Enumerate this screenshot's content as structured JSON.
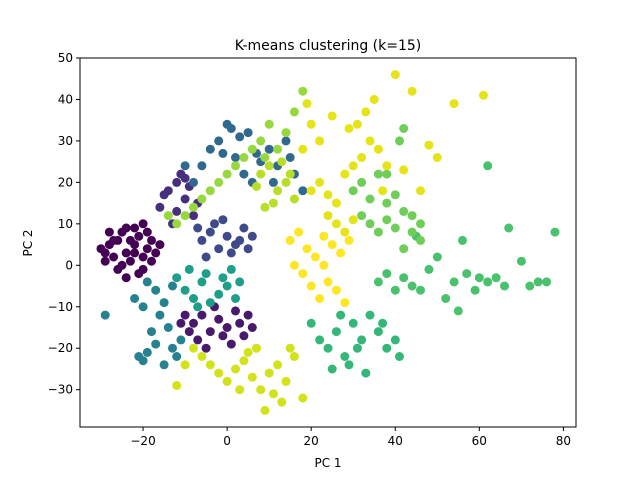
{
  "chart_data": {
    "type": "scatter",
    "title": "K-means clustering (k=15)",
    "xlabel": "PC 1",
    "ylabel": "PC 2",
    "xlim": [
      -35,
      83
    ],
    "ylim": [
      -39,
      50
    ],
    "xticks": [
      -20,
      0,
      20,
      40,
      60,
      80
    ],
    "yticks": [
      -30,
      -20,
      -10,
      0,
      10,
      20,
      30,
      40,
      50
    ],
    "xtick_labels": [
      "−20",
      "0",
      "20",
      "40",
      "60",
      "80"
    ],
    "ytick_labels": [
      "−30",
      "−20",
      "−10",
      "0",
      "10",
      "20",
      "30",
      "40",
      "50"
    ],
    "grid": false,
    "legend": "none",
    "colormap": "viridis",
    "series": [
      {
        "cluster": 0,
        "color": "#440154",
        "points": [
          [
            -30,
            4
          ],
          [
            -29,
            3
          ],
          [
            -28,
            5
          ],
          [
            -27,
            2
          ],
          [
            -26,
            6
          ],
          [
            -25,
            8
          ],
          [
            -24,
            3
          ],
          [
            -23,
            1
          ],
          [
            -22,
            5
          ],
          [
            -21,
            7
          ],
          [
            -20,
            2
          ],
          [
            -19,
            4
          ],
          [
            -18,
            6
          ],
          [
            -17,
            3
          ],
          [
            -28,
            8
          ],
          [
            -26,
            -1
          ],
          [
            -24,
            -3
          ],
          [
            -22,
            9
          ],
          [
            -20,
            10
          ],
          [
            -18,
            1
          ],
          [
            -16,
            5
          ],
          [
            -25,
            0
          ],
          [
            -23,
            6
          ],
          [
            -21,
            -2
          ],
          [
            -19,
            8
          ],
          [
            -27,
            6
          ],
          [
            -24,
            9
          ],
          [
            -29,
            1
          ],
          [
            -22,
            3
          ],
          [
            -20,
            -1
          ]
        ]
      },
      {
        "cluster": 1,
        "color": "#481a6c",
        "points": [
          [
            -8,
            -14
          ],
          [
            -6,
            -12
          ],
          [
            -4,
            -16
          ],
          [
            -2,
            -13
          ],
          [
            0,
            -15
          ],
          [
            2,
            -11
          ],
          [
            4,
            -17
          ],
          [
            -10,
            -12
          ],
          [
            -7,
            -18
          ],
          [
            -3,
            -10
          ],
          [
            1,
            -19
          ],
          [
            3,
            -14
          ],
          [
            -5,
            -20
          ],
          [
            -9,
            -16
          ],
          [
            5,
            -12
          ],
          [
            -1,
            -17
          ],
          [
            6,
            -15
          ],
          [
            -11,
            -14
          ]
        ]
      },
      {
        "cluster": 2,
        "color": "#472f7d",
        "points": [
          [
            -14,
            18
          ],
          [
            -12,
            20
          ],
          [
            -10,
            16
          ],
          [
            -16,
            14
          ],
          [
            -8,
            12
          ],
          [
            -13,
            10
          ],
          [
            -11,
            22
          ],
          [
            -9,
            19
          ],
          [
            -15,
            17
          ],
          [
            -7,
            15
          ],
          [
            -12,
            13
          ],
          [
            -10,
            21
          ]
        ]
      },
      {
        "cluster": 3,
        "color": "#3e4a89",
        "points": [
          [
            -6,
            6
          ],
          [
            -4,
            8
          ],
          [
            -2,
            4
          ],
          [
            0,
            7
          ],
          [
            2,
            5
          ],
          [
            4,
            9
          ],
          [
            -5,
            2
          ],
          [
            -3,
            10
          ],
          [
            1,
            3
          ],
          [
            3,
            6
          ],
          [
            -1,
            11
          ],
          [
            5,
            4
          ],
          [
            -7,
            9
          ],
          [
            6,
            7
          ]
        ]
      },
      {
        "cluster": 4,
        "color": "#31688e",
        "points": [
          [
            -6,
            24
          ],
          [
            -4,
            28
          ],
          [
            -2,
            30
          ],
          [
            0,
            34
          ],
          [
            1,
            33
          ],
          [
            2,
            26
          ],
          [
            4,
            22
          ],
          [
            6,
            20
          ],
          [
            8,
            25
          ],
          [
            10,
            28
          ],
          [
            12,
            24
          ],
          [
            14,
            30
          ],
          [
            16,
            22
          ],
          [
            18,
            18
          ],
          [
            -8,
            20
          ],
          [
            -10,
            24
          ],
          [
            3,
            31
          ],
          [
            7,
            27
          ],
          [
            11,
            20
          ],
          [
            15,
            26
          ],
          [
            -1,
            27
          ],
          [
            5,
            32
          ]
        ]
      },
      {
        "cluster": 5,
        "color": "#26828e",
        "points": [
          [
            -29,
            -12
          ],
          [
            -21,
            -22
          ],
          [
            -20,
            -23
          ],
          [
            -19,
            -21
          ],
          [
            -17,
            -19
          ],
          [
            -15,
            -24
          ],
          [
            -13,
            -20
          ],
          [
            -18,
            -16
          ],
          [
            -16,
            -12
          ],
          [
            -14,
            -15
          ],
          [
            -12,
            -22
          ],
          [
            -11,
            -18
          ],
          [
            -20,
            -10
          ],
          [
            -22,
            -8
          ],
          [
            -17,
            -6
          ],
          [
            -15,
            -9
          ],
          [
            -13,
            -5
          ],
          [
            -19,
            -4
          ]
        ]
      },
      {
        "cluster": 6,
        "color": "#1f9e89",
        "points": [
          [
            -10,
            -6
          ],
          [
            -8,
            -8
          ],
          [
            -6,
            -4
          ],
          [
            -4,
            -9
          ],
          [
            -2,
            -7
          ],
          [
            0,
            -5
          ],
          [
            2,
            -8
          ],
          [
            -12,
            -3
          ],
          [
            -9,
            -1
          ],
          [
            -5,
            -2
          ],
          [
            -1,
            -3
          ],
          [
            3,
            -4
          ],
          [
            -7,
            -10
          ],
          [
            1,
            -1
          ]
        ]
      },
      {
        "cluster": 7,
        "color": "#35b779",
        "points": [
          [
            22,
            -18
          ],
          [
            24,
            -20
          ],
          [
            26,
            -16
          ],
          [
            28,
            -22
          ],
          [
            30,
            -14
          ],
          [
            32,
            -18
          ],
          [
            34,
            -12
          ],
          [
            36,
            -16
          ],
          [
            38,
            -20
          ],
          [
            40,
            -18
          ],
          [
            25,
            -25
          ],
          [
            29,
            -24
          ],
          [
            33,
            -26
          ],
          [
            20,
            -14
          ],
          [
            37,
            -14
          ],
          [
            41,
            -22
          ],
          [
            31,
            -20
          ],
          [
            27,
            -12
          ]
        ]
      },
      {
        "cluster": 8,
        "color": "#4ac16d",
        "points": [
          [
            36,
            -4
          ],
          [
            38,
            -2
          ],
          [
            40,
            -6
          ],
          [
            42,
            -3
          ],
          [
            44,
            -5
          ],
          [
            46,
            -6
          ],
          [
            48,
            -1
          ],
          [
            54,
            -4
          ],
          [
            55,
            -11
          ],
          [
            57,
            -2
          ],
          [
            60,
            -3
          ],
          [
            62,
            -4
          ],
          [
            64,
            -3
          ],
          [
            66,
            -5
          ],
          [
            70,
            1
          ],
          [
            72,
            -5
          ],
          [
            74,
            -4
          ],
          [
            76,
            -4
          ],
          [
            78,
            8
          ],
          [
            67,
            9
          ],
          [
            56,
            6
          ],
          [
            50,
            2
          ],
          [
            45,
            7
          ],
          [
            62,
            24
          ],
          [
            52,
            -8
          ],
          [
            59,
            -6
          ]
        ]
      },
      {
        "cluster": 9,
        "color": "#6ece58",
        "points": [
          [
            30,
            18
          ],
          [
            32,
            20
          ],
          [
            34,
            16
          ],
          [
            36,
            22
          ],
          [
            38,
            15
          ],
          [
            40,
            17
          ],
          [
            42,
            13
          ],
          [
            44,
            12
          ],
          [
            46,
            10
          ],
          [
            34,
            10
          ],
          [
            36,
            8
          ],
          [
            38,
            11
          ],
          [
            40,
            9
          ],
          [
            42,
            4
          ],
          [
            32,
            12
          ],
          [
            44,
            8
          ],
          [
            38,
            22
          ],
          [
            41,
            30
          ],
          [
            42,
            33
          ],
          [
            46,
            6
          ]
        ]
      },
      {
        "cluster": 10,
        "color": "#97d83f",
        "points": [
          [
            -10,
            12
          ],
          [
            -8,
            14
          ],
          [
            -6,
            16
          ],
          [
            -4,
            18
          ],
          [
            -2,
            20
          ],
          [
            0,
            22
          ],
          [
            2,
            24
          ],
          [
            4,
            26
          ],
          [
            6,
            28
          ],
          [
            8,
            30
          ],
          [
            14,
            32
          ],
          [
            16,
            37
          ],
          [
            10,
            34
          ],
          [
            12,
            28
          ],
          [
            -12,
            10
          ],
          [
            -14,
            12
          ],
          [
            18,
            42
          ],
          [
            9,
            26
          ]
        ]
      },
      {
        "cluster": 11,
        "color": "#b8de29",
        "points": [
          [
            8,
            22
          ],
          [
            10,
            24
          ],
          [
            12,
            18
          ],
          [
            14,
            20
          ],
          [
            16,
            16
          ],
          [
            7,
            19
          ],
          [
            11,
            15
          ],
          [
            13,
            25
          ],
          [
            9,
            14
          ],
          [
            15,
            22
          ]
        ]
      },
      {
        "cluster": 12,
        "color": "#d2e21b",
        "points": [
          [
            -8,
            -20
          ],
          [
            -6,
            -22
          ],
          [
            -4,
            -24
          ],
          [
            -2,
            -26
          ],
          [
            0,
            -28
          ],
          [
            2,
            -25
          ],
          [
            4,
            -23
          ],
          [
            6,
            -27
          ],
          [
            8,
            -30
          ],
          [
            10,
            -26
          ],
          [
            12,
            -24
          ],
          [
            14,
            -28
          ],
          [
            16,
            -22
          ],
          [
            9,
            -35
          ],
          [
            11,
            -31
          ],
          [
            13,
            -33
          ],
          [
            18,
            -32
          ],
          [
            -10,
            -24
          ],
          [
            7,
            -20
          ],
          [
            3,
            -30
          ],
          [
            -12,
            -29
          ],
          [
            15,
            -20
          ],
          [
            5,
            -21
          ]
        ]
      },
      {
        "cluster": 13,
        "color": "#e5e419",
        "points": [
          [
            20,
            18
          ],
          [
            22,
            20
          ],
          [
            24,
            17
          ],
          [
            26,
            15
          ],
          [
            28,
            22
          ],
          [
            30,
            24
          ],
          [
            32,
            26
          ],
          [
            34,
            30
          ],
          [
            36,
            28
          ],
          [
            38,
            24
          ],
          [
            40,
            46
          ],
          [
            44,
            42
          ],
          [
            48,
            29
          ],
          [
            50,
            26
          ],
          [
            54,
            39
          ],
          [
            61,
            41
          ],
          [
            42,
            23
          ],
          [
            46,
            18
          ],
          [
            31,
            34
          ],
          [
            33,
            37
          ],
          [
            35,
            40
          ],
          [
            26,
            10
          ],
          [
            28,
            8
          ],
          [
            18,
            28
          ],
          [
            20,
            34
          ],
          [
            22,
            30
          ],
          [
            24,
            12
          ],
          [
            29,
            33
          ],
          [
            19,
            39
          ],
          [
            25,
            36
          ],
          [
            37,
            18
          ],
          [
            30,
            11
          ]
        ]
      },
      {
        "cluster": 14,
        "color": "#fde725",
        "points": [
          [
            15,
            6
          ],
          [
            17,
            8
          ],
          [
            19,
            4
          ],
          [
            21,
            2
          ],
          [
            23,
            7
          ],
          [
            25,
            5
          ],
          [
            27,
            3
          ],
          [
            29,
            6
          ],
          [
            18,
            -2
          ],
          [
            20,
            -5
          ],
          [
            22,
            -8
          ],
          [
            24,
            -4
          ],
          [
            26,
            -6
          ],
          [
            28,
            -9
          ],
          [
            16,
            0
          ],
          [
            23,
            0
          ]
        ]
      }
    ]
  }
}
